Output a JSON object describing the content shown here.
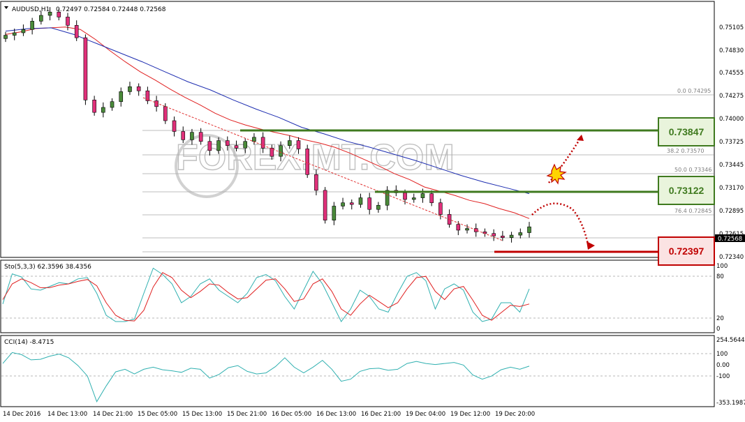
{
  "header": {
    "symbol": "AUDUSD,H1",
    "ohlc": "0.72497 0.72584 0.72448 0.72568"
  },
  "watermark": "FOREX.MT.COM",
  "price_axis": {
    "ticks": [
      "0.75105",
      "0.74830",
      "0.74555",
      "0.74275",
      "0.74000",
      "0.73725",
      "0.73445",
      "0.73170",
      "0.72895",
      "0.72615",
      "0.72340"
    ],
    "current_price": "0.72568"
  },
  "fibo_labels": [
    "0.0 0.74295",
    "38.2 0.73570",
    "50.0 0.73346",
    "76.4 0.72845"
  ],
  "levels": [
    {
      "value": "0.73847",
      "color": "#3f7a1f"
    },
    {
      "value": "0.73122",
      "color": "#3f7a1f"
    },
    {
      "value": "0.72397",
      "color": "#c00000"
    }
  ],
  "stoch": {
    "label": "Sto(5,3,3) 62.3596 38.4356",
    "ticks": [
      "100",
      "80",
      "20",
      "0"
    ]
  },
  "cci": {
    "label": "CCI(14) -8.4715",
    "ticks": [
      "254.5644",
      "100",
      "0.00",
      "-100",
      "-353.1987"
    ]
  },
  "time_axis": [
    "14 Dec 2016",
    "14 Dec 13:00",
    "14 Dec 21:00",
    "15 Dec 05:00",
    "15 Dec 13:00",
    "15 Dec 21:00",
    "16 Dec 05:00",
    "16 Dec 13:00",
    "16 Dec 21:00",
    "19 Dec 04:00",
    "19 Dec 12:00",
    "19 Dec 20:00"
  ],
  "chart_data": {
    "type": "candlestick",
    "symbol": "AUDUSD",
    "timeframe": "H1",
    "ylim": [
      0.7221,
      0.7528
    ],
    "close_path": [
      0.7488,
      0.7491,
      0.7495,
      0.7505,
      0.7512,
      0.7516,
      0.751,
      0.75,
      0.7485,
      0.741,
      0.7395,
      0.7401,
      0.7408,
      0.742,
      0.7426,
      0.7421,
      0.7409,
      0.7402,
      0.7385,
      0.7372,
      0.7362,
      0.7371,
      0.736,
      0.7349,
      0.7361,
      0.7355,
      0.7352,
      0.736,
      0.7365,
      0.7352,
      0.7342,
      0.7355,
      0.7361,
      0.7351,
      0.732,
      0.7301,
      0.7265,
      0.7282,
      0.7286,
      0.7284,
      0.7292,
      0.7278,
      0.7283,
      0.7301,
      0.7298,
      0.729,
      0.7292,
      0.7297,
      0.7286,
      0.7272,
      0.726,
      0.7253,
      0.7255,
      0.7251,
      0.7249,
      0.7246,
      0.7244,
      0.7247,
      0.725,
      0.7257
    ],
    "last": {
      "open": 0.72497,
      "high": 0.72584,
      "low": 0.72448,
      "close": 0.72568
    },
    "series": [
      {
        "values_fast_ma": [
          0.7489,
          0.7492,
          0.7496,
          0.7497,
          0.7498,
          0.7495,
          0.7483,
          0.7469,
          0.7456,
          0.7444,
          0.7434,
          0.7423,
          0.7413,
          0.7404,
          0.7394,
          0.7386,
          0.738,
          0.7375,
          0.7371,
          0.7367,
          0.7362,
          0.7358,
          0.7353,
          0.7346,
          0.7338,
          0.733,
          0.7321,
          0.7314,
          0.7305,
          0.73,
          0.7295,
          0.7289,
          0.7285,
          0.7279,
          0.7274,
          0.7267
        ]
      },
      {
        "values_slow_ma": [
          0.7493,
          0.7496,
          0.7497,
          0.7489,
          0.7478,
          0.7467,
          0.7456,
          0.7444,
          0.7432,
          0.7422,
          0.741,
          0.7399,
          0.7389,
          0.7377,
          0.7369,
          0.736,
          0.7353,
          0.7345,
          0.7337,
          0.7328,
          0.7319,
          0.7311,
          0.7304,
          0.7297
        ]
      }
    ],
    "stoch_main": [
      38,
      86,
      81,
      62,
      60,
      66,
      72,
      70,
      78,
      80,
      55,
      20,
      10,
      10,
      14,
      55,
      95,
      85,
      70,
      40,
      50,
      70,
      78,
      60,
      50,
      40,
      55,
      80,
      85,
      75,
      50,
      30,
      60,
      90,
      70,
      40,
      10,
      30,
      60,
      50,
      30,
      25,
      55,
      82,
      88,
      75,
      30,
      62,
      70,
      60,
      25,
      10,
      14,
      40,
      40,
      25,
      62
    ],
    "stoch_signal": [
      45,
      70,
      78,
      72,
      64,
      64,
      68,
      70,
      74,
      77,
      67,
      40,
      20,
      12,
      11,
      28,
      65,
      88,
      80,
      60,
      48,
      58,
      70,
      68,
      56,
      46,
      48,
      62,
      76,
      78,
      62,
      42,
      46,
      70,
      78,
      58,
      30,
      20,
      38,
      52,
      42,
      32,
      40,
      62,
      80,
      82,
      58,
      45,
      62,
      66,
      44,
      20,
      12,
      24,
      36,
      34,
      38
    ],
    "cci": [
      20,
      125,
      105,
      55,
      60,
      90,
      110,
      75,
      0,
      -100,
      -345,
      -195,
      -60,
      -35,
      -80,
      -35,
      -15,
      -40,
      -50,
      -65,
      -25,
      -35,
      -120,
      -85,
      -20,
      0,
      -55,
      -80,
      -70,
      -10,
      75,
      -15,
      -70,
      -15,
      50,
      -35,
      -150,
      -130,
      -55,
      -30,
      -25,
      -45,
      -35,
      20,
      40,
      20,
      10,
      20,
      30,
      5,
      -90,
      -130,
      -100,
      -40,
      -15,
      -35,
      -5
    ]
  }
}
